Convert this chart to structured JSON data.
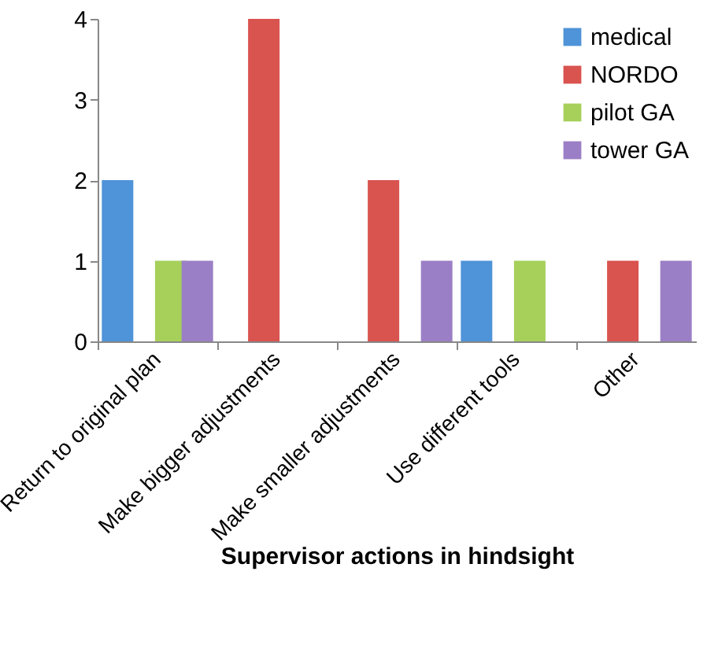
{
  "chart_data": {
    "type": "bar",
    "xlabel": "Supervisor actions in hindsight",
    "categories": [
      "Return to original plan",
      "Make bigger adjustments",
      "Make smaller adjustments",
      "Use different tools",
      "Other"
    ],
    "series": [
      {
        "name": "medical",
        "color": "#4f93d8",
        "values": [
          2,
          0,
          0,
          1,
          0
        ]
      },
      {
        "name": "NORDO",
        "color": "#d9534f",
        "values": [
          0,
          4,
          2,
          0,
          1
        ]
      },
      {
        "name": "pilot GA",
        "color": "#a6d05a",
        "values": [
          1,
          0,
          0,
          1,
          0
        ]
      },
      {
        "name": "tower GA",
        "color": "#9b7fc6",
        "values": [
          1,
          0,
          1,
          0,
          1
        ]
      }
    ],
    "ylim": [
      0,
      4
    ],
    "yticks": [
      0,
      1,
      2,
      3,
      4
    ],
    "grid": false,
    "legend": "top right"
  }
}
